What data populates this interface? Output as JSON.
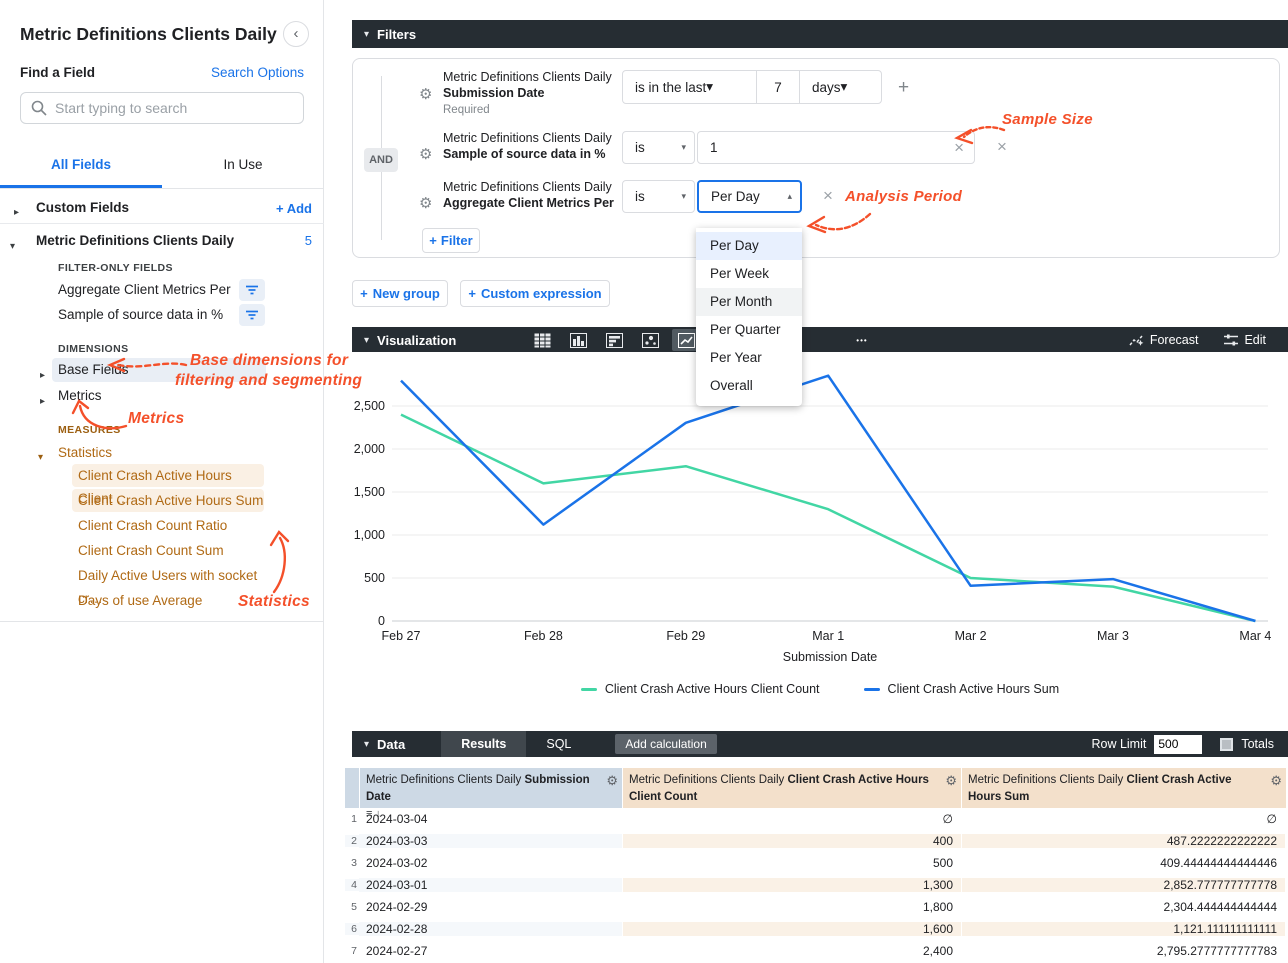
{
  "icons": {
    "caret_down": "▾",
    "caret_right": "▸",
    "caret_up": "▴",
    "close": "×",
    "gear": "⚙",
    "plus": "+",
    "more": "•••",
    "collapse": "‹",
    "sort_rows": "≡",
    "sort_desc": "↓"
  },
  "sidebar": {
    "title": "Metric Definitions Clients Daily",
    "find_label": "Find a Field",
    "search_options": "Search Options",
    "search_placeholder": "Start typing to search",
    "tabs": {
      "all_fields": "All Fields",
      "in_use": "In Use"
    },
    "custom_fields_label": "Custom Fields",
    "add_label": "+ Add",
    "view_label": "Metric Definitions Clients Daily",
    "view_count": "5",
    "filter_only_label": "FILTER-ONLY FIELDS",
    "filter_only_items": [
      "Aggregate Client Metrics Per",
      "Sample of source data in %"
    ],
    "dimensions_label": "DIMENSIONS",
    "dimension_groups": [
      "Base Fields",
      "Metrics"
    ],
    "measures_label": "MEASURES",
    "measures_group": "Statistics",
    "measures": {
      "items": [
        {
          "label": "Client Crash Active Hours Client …",
          "selected": true
        },
        {
          "label": "Client Crash Active Hours Sum",
          "selected": true
        },
        {
          "label": "Client Crash Count Ratio",
          "selected": false
        },
        {
          "label": "Client Crash Count Sum",
          "selected": false
        },
        {
          "label": "Daily Active Users with socket cr…",
          "selected": false
        },
        {
          "label": "Days of use Average",
          "selected": false
        }
      ]
    }
  },
  "annotations": {
    "base_dimensions_line1": "Base dimensions for",
    "base_dimensions_line2": "filtering and segmenting",
    "metrics": "Metrics",
    "statistics": "Statistics",
    "sample_size": "Sample Size",
    "analysis_period": "Analysis Period"
  },
  "filters": {
    "header": "Filters",
    "and_label": "AND",
    "rows": [
      {
        "view": "Metric Definitions Clients Daily",
        "field": "Submission Date",
        "note": "Required",
        "op": "is in the last",
        "value": "7",
        "unit": "days"
      },
      {
        "view": "Metric Definitions Clients Daily",
        "field": "Sample of source data in %",
        "op": "is",
        "value": "1"
      },
      {
        "view": "Metric Definitions Clients Daily",
        "field": "Aggregate Client Metrics Per",
        "op": "is",
        "value": "Per Day"
      }
    ],
    "add_filter": "Filter",
    "new_group": "New group",
    "custom_expression": "Custom expression",
    "dropdown": {
      "items": [
        "Per Day",
        "Per Week",
        "Per Month",
        "Per Quarter",
        "Per Year",
        "Overall"
      ],
      "selected": "Per Day",
      "hovered": "Per Month"
    }
  },
  "visualization": {
    "header": "Visualization",
    "forecast": "Forecast",
    "edit": "Edit"
  },
  "chart_data": {
    "type": "line",
    "x": [
      "Feb 27",
      "Feb 28",
      "Feb 29",
      "Mar 1",
      "Mar 2",
      "Mar 3",
      "Mar 4"
    ],
    "xlabel": "Submission Date",
    "yticks": [
      0,
      500,
      1000,
      1500,
      2000,
      2500
    ],
    "ylim": [
      0,
      2900
    ],
    "grid": true,
    "legend_position": "bottom",
    "series": [
      {
        "name": "Client Crash Active Hours Client Count",
        "color": "#42d6a4",
        "values": [
          2400,
          1600,
          1800,
          1300,
          500,
          400,
          0
        ]
      },
      {
        "name": "Client Crash Active Hours Sum",
        "color": "#1a73e8",
        "values": [
          2795.2777777777783,
          1121.111111111111,
          2304.444444444444,
          2852.777777777778,
          409.44444444444446,
          487.2222222222222,
          0
        ]
      }
    ]
  },
  "data_section": {
    "header": "Data",
    "tab_results": "Results",
    "tab_sql": "SQL",
    "add_calculation": "Add calculation",
    "row_limit_label": "Row Limit",
    "row_limit_value": "500",
    "totals_label": "Totals"
  },
  "table": {
    "columns": [
      {
        "prefix": "Metric Definitions Clients Daily",
        "field": "Submission Date",
        "type": "dimension"
      },
      {
        "prefix": "Metric Definitions Clients Daily",
        "field": "Client Crash Active Hours Client Count",
        "type": "measure"
      },
      {
        "prefix": "Metric Definitions Clients Daily",
        "field": "Client Crash Active Hours Sum",
        "type": "measure"
      }
    ],
    "rows": [
      {
        "n": "1",
        "date": "2024-03-04",
        "count": "∅",
        "sum": "∅"
      },
      {
        "n": "2",
        "date": "2024-03-03",
        "count": "400",
        "sum": "487.2222222222222"
      },
      {
        "n": "3",
        "date": "2024-03-02",
        "count": "500",
        "sum": "409.44444444444446"
      },
      {
        "n": "4",
        "date": "2024-03-01",
        "count": "1,300",
        "sum": "2,852.777777777778"
      },
      {
        "n": "5",
        "date": "2024-02-29",
        "count": "1,800",
        "sum": "2,304.444444444444"
      },
      {
        "n": "6",
        "date": "2024-02-28",
        "count": "1,600",
        "sum": "1,121.111111111111"
      },
      {
        "n": "7",
        "date": "2024-02-27",
        "count": "2,400",
        "sum": "2,795.2777777777783"
      }
    ]
  },
  "colors": {
    "accent_blue": "#1a73e8",
    "dark_bar": "#262d33",
    "measure_orange": "#b06a15",
    "annotation_red": "#f4502a",
    "series_green": "#42d6a4",
    "series_blue": "#1a73e8"
  }
}
